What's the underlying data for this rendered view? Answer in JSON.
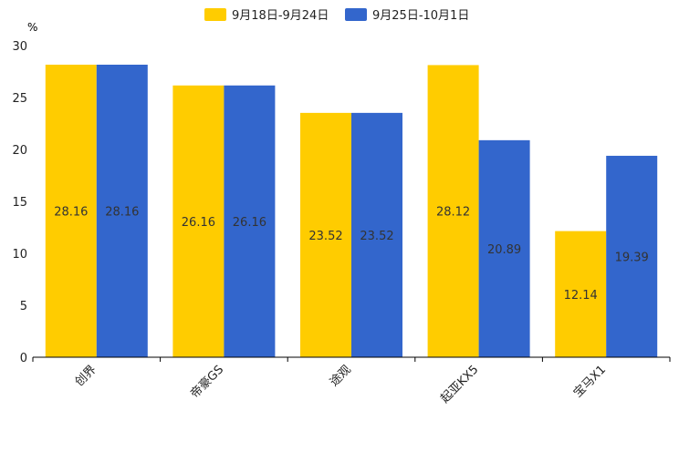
{
  "chart_data": {
    "type": "bar",
    "y_unit": "%",
    "categories": [
      "创界",
      "帝豪GS",
      "途观",
      "起亚KX5",
      "宝马X1"
    ],
    "series": [
      {
        "name": "9月18日-9月24日",
        "color": "#FFCC00",
        "values": [
          28.16,
          26.16,
          23.52,
          28.12,
          12.14
        ]
      },
      {
        "name": "9月25日-10月1日",
        "color": "#3366CC",
        "values": [
          28.16,
          26.16,
          23.52,
          20.89,
          19.39
        ]
      }
    ],
    "ylim": [
      0,
      30
    ],
    "yticks": [
      0,
      5,
      10,
      15,
      20,
      25,
      30
    ],
    "legend_position": "top-center",
    "grid": false
  }
}
